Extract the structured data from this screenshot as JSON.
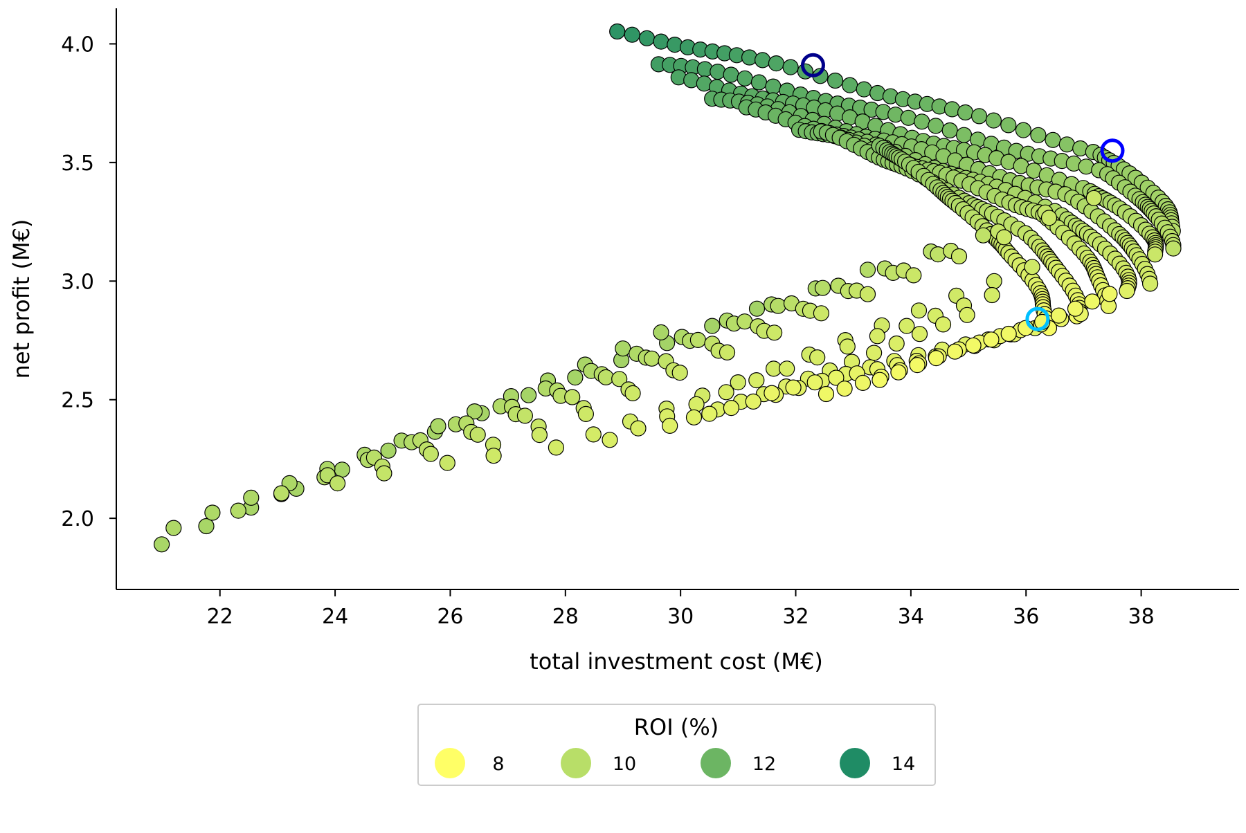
{
  "chart_data": {
    "type": "scatter",
    "xlabel": "total investment cost (M€)",
    "ylabel": "net profit (M€)",
    "xlim": [
      20.2,
      39.7
    ],
    "ylim": [
      1.7,
      4.15
    ],
    "xticks": [
      "22",
      "24",
      "26",
      "28",
      "30",
      "32",
      "34",
      "36",
      "38"
    ],
    "yticks": [
      "2.0",
      "2.5",
      "3.0",
      "3.5",
      "4.0"
    ],
    "grid": false,
    "colormap": {
      "low": "#ffff66",
      "mid_low": "#b8de68",
      "mid_high": "#6cb563",
      "high": "#1f8c65",
      "range": [
        7,
        15
      ]
    },
    "legend": {
      "title": "ROI (%)",
      "placement": "bottom-center",
      "entries": [
        {
          "label": "8",
          "color": "#ffff66"
        },
        {
          "label": "10",
          "color": "#b8de68"
        },
        {
          "label": "12",
          "color": "#6cb563"
        },
        {
          "label": "14",
          "color": "#1f8c65"
        }
      ]
    },
    "highlighted_points": [
      {
        "x": 32.3,
        "y": 3.91,
        "color": "#00008b"
      },
      {
        "x": 37.5,
        "y": 3.55,
        "color": "#0000ff"
      },
      {
        "x": 36.2,
        "y": 2.84,
        "color": "#00bfff"
      }
    ],
    "bands": [
      {
        "start": [
          28.9,
          4.05
        ],
        "mid": [
          37.2,
          3.55
        ],
        "end": [
          38.6,
          3.2
        ],
        "roi": [
          14.5,
          11.2,
          9.8
        ]
      },
      {
        "start": [
          29.6,
          3.92
        ],
        "mid": [
          37.4,
          3.45
        ],
        "end": [
          38.5,
          3.15
        ],
        "roi": [
          13.8,
          10.8,
          9.4
        ]
      },
      {
        "start": [
          30.0,
          3.85
        ],
        "mid": [
          37.0,
          3.4
        ],
        "end": [
          38.3,
          3.1
        ],
        "roi": [
          13.4,
          10.5,
          9.0
        ]
      },
      {
        "start": [
          30.5,
          3.78
        ],
        "mid": [
          36.8,
          3.35
        ],
        "end": [
          38.1,
          3.0
        ],
        "roi": [
          13.0,
          10.2,
          8.6
        ]
      },
      {
        "start": [
          31.2,
          3.72
        ],
        "mid": [
          36.5,
          3.3
        ],
        "end": [
          37.8,
          2.95
        ],
        "roi": [
          12.6,
          9.9,
          8.2
        ]
      },
      {
        "start": [
          32.0,
          3.65
        ],
        "mid": [
          36.3,
          3.28
        ],
        "end": [
          37.4,
          2.9
        ],
        "roi": [
          12.2,
          9.6,
          7.8
        ]
      },
      {
        "start": [
          32.5,
          3.62
        ],
        "mid": [
          36.0,
          3.2
        ],
        "end": [
          36.9,
          2.85
        ],
        "roi": [
          11.9,
          9.3,
          7.5
        ]
      },
      {
        "start": [
          33.4,
          3.58
        ],
        "mid": [
          35.6,
          3.15
        ],
        "end": [
          36.4,
          2.8
        ],
        "roi": [
          11.6,
          9.0,
          7.3
        ]
      }
    ],
    "lines": [
      {
        "start": [
          21.0,
          1.9
        ],
        "end": [
          31.3,
          2.89
        ],
        "roi": [
          10.2,
          10.4
        ]
      },
      {
        "start": [
          21.2,
          1.95
        ],
        "end": [
          29.7,
          2.78
        ],
        "roi": [
          10.0,
          10.2
        ]
      },
      {
        "start": [
          22.3,
          2.04
        ],
        "end": [
          32.3,
          2.97
        ],
        "roi": [
          9.8,
          10.0
        ]
      },
      {
        "start": [
          23.1,
          2.1
        ],
        "end": [
          33.3,
          3.05
        ],
        "roi": [
          9.6,
          9.8
        ]
      },
      {
        "start": [
          24.0,
          2.15
        ],
        "end": [
          34.3,
          3.12
        ],
        "roi": [
          9.4,
          9.6
        ]
      },
      {
        "start": [
          24.9,
          2.19
        ],
        "end": [
          35.3,
          3.2
        ],
        "roi": [
          9.2,
          9.4
        ]
      },
      {
        "start": [
          25.9,
          2.23
        ],
        "end": [
          36.3,
          3.28
        ],
        "roi": [
          9.0,
          9.2
        ]
      },
      {
        "start": [
          26.8,
          2.27
        ],
        "end": [
          37.2,
          3.36
        ],
        "roi": [
          8.8,
          9.0
        ]
      },
      {
        "start": [
          27.8,
          2.29
        ],
        "end": [
          36.1,
          3.05
        ],
        "roi": [
          8.6,
          8.8
        ]
      },
      {
        "start": [
          28.8,
          2.34
        ],
        "end": [
          35.4,
          2.95
        ],
        "roi": [
          8.4,
          8.6
        ]
      },
      {
        "start": [
          29.8,
          2.38
        ],
        "end": [
          35.0,
          2.85
        ],
        "roi": [
          8.2,
          8.4
        ]
      },
      {
        "start": [
          30.5,
          2.45
        ],
        "end": [
          35.7,
          2.78
        ],
        "roi": [
          8.0,
          8.2
        ]
      },
      {
        "start": [
          31.6,
          2.52
        ],
        "end": [
          36.2,
          2.8
        ],
        "roi": [
          7.8,
          8.0
        ]
      },
      {
        "start": [
          32.5,
          2.53
        ],
        "end": [
          36.9,
          2.86
        ],
        "roi": [
          7.6,
          7.8
        ]
      },
      {
        "start": [
          33.5,
          2.58
        ],
        "end": [
          37.5,
          2.95
        ],
        "roi": [
          7.4,
          7.6
        ]
      }
    ]
  }
}
